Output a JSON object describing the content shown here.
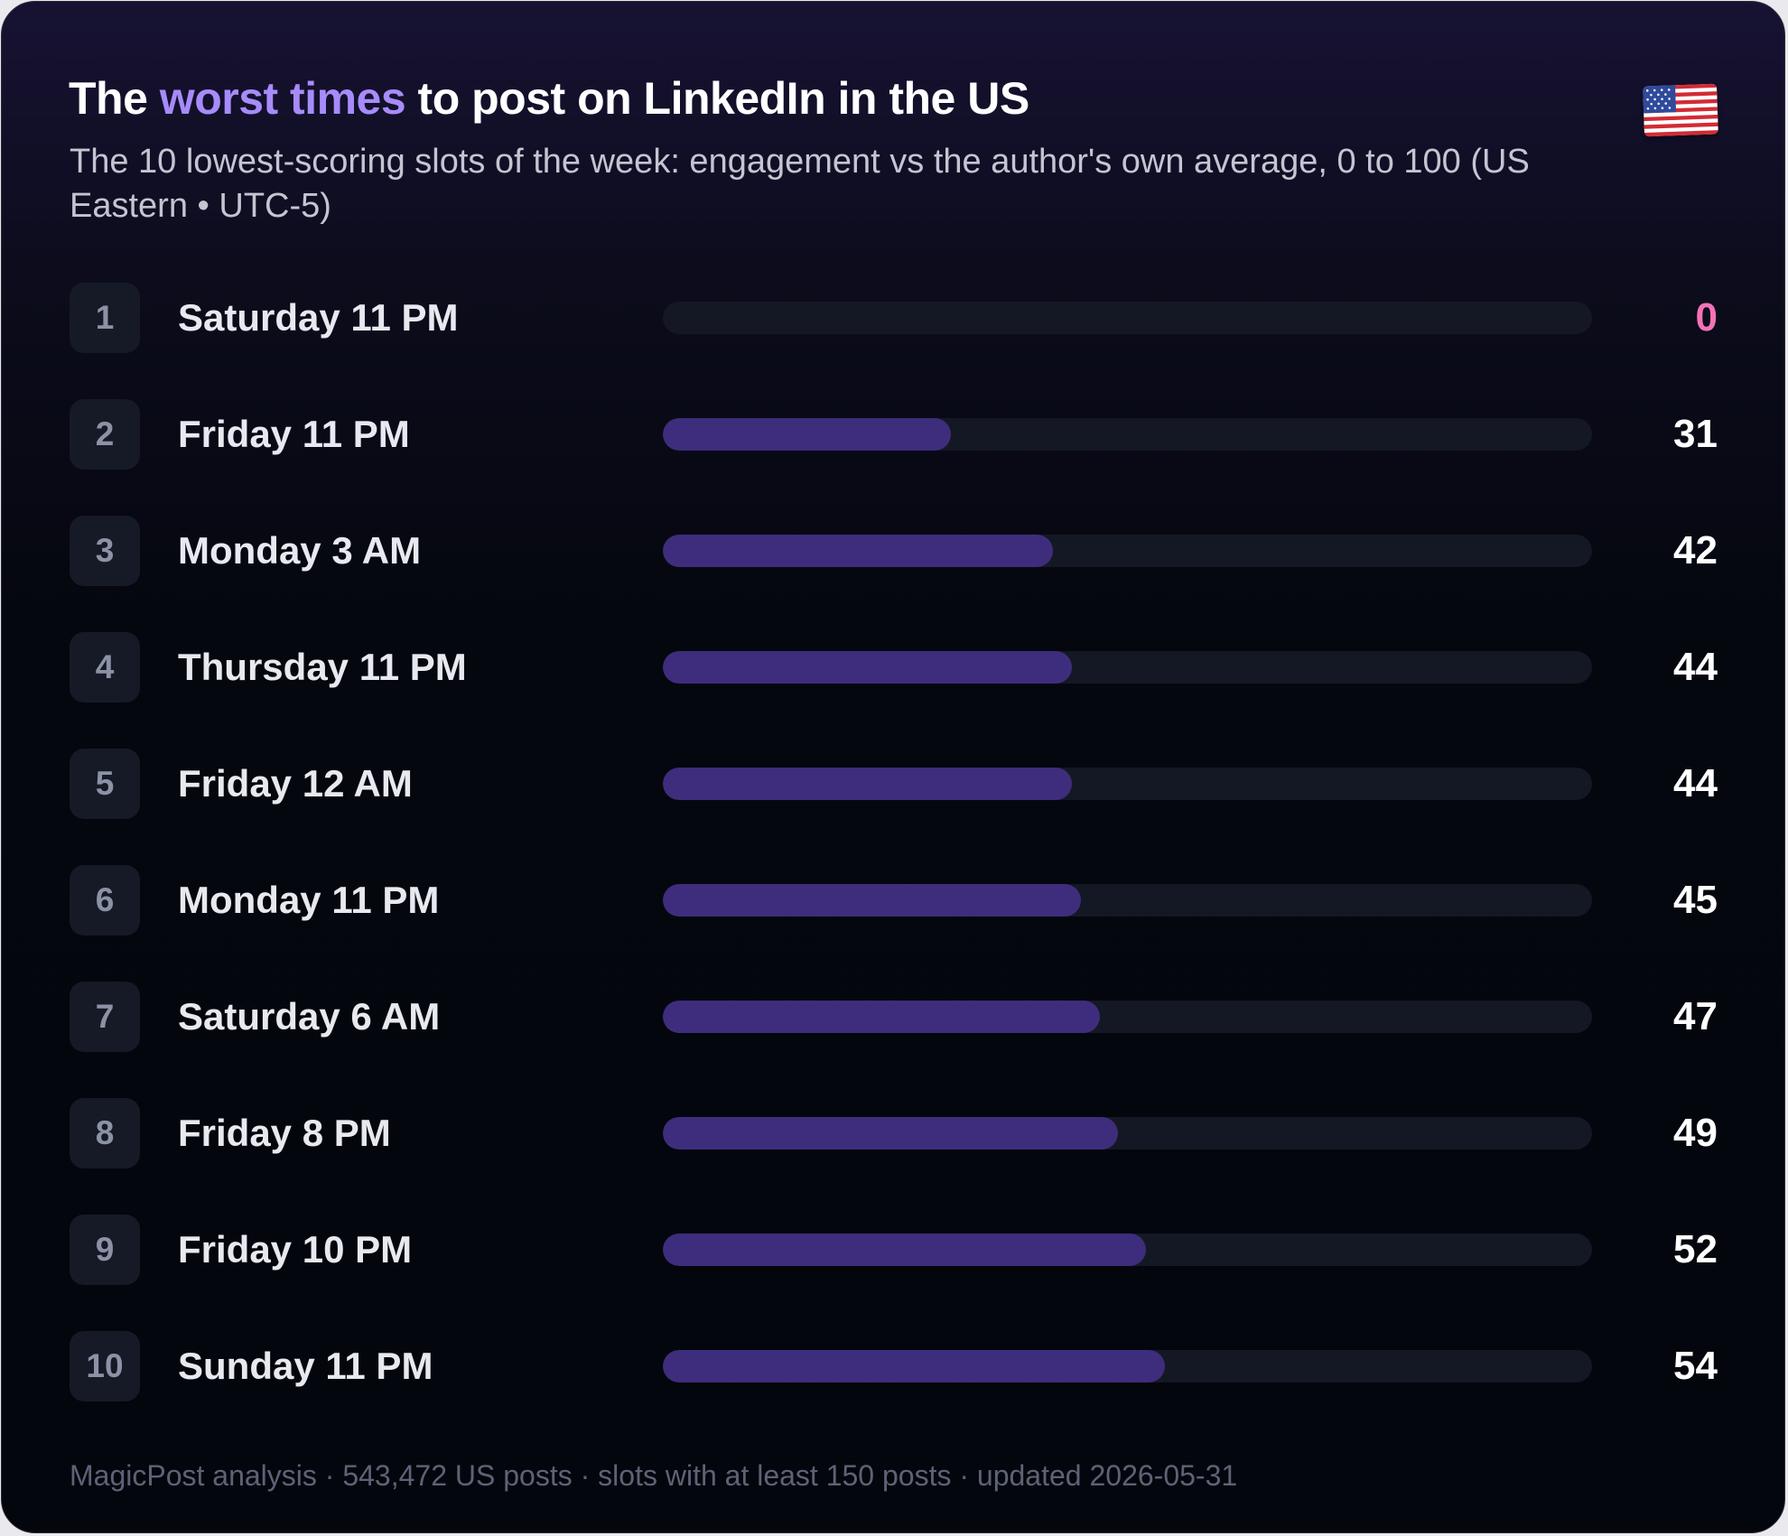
{
  "header": {
    "title_pre": "The ",
    "title_accent": "worst times",
    "title_post": " to post on LinkedIn in the US",
    "subtitle": "The 10 lowest-scoring slots of the week: engagement vs the author's own average, 0 to 100 (US Eastern • UTC-5)",
    "flag_icon": "us-flag-icon"
  },
  "colors": {
    "accent": "#a78bfa",
    "bar_fill": "#3e2d7c",
    "bar_track": "#141824",
    "zero_value": "#f472b6"
  },
  "chart_data": {
    "type": "bar",
    "orientation": "horizontal",
    "xlim": [
      0,
      100
    ],
    "categories": [
      "Saturday 11 PM",
      "Friday 11 PM",
      "Monday 3 AM",
      "Thursday 11 PM",
      "Friday 12 AM",
      "Monday 11 PM",
      "Saturday 6 AM",
      "Friday 8 PM",
      "Friday 10 PM",
      "Sunday 11 PM"
    ],
    "ranks": [
      "1",
      "2",
      "3",
      "4",
      "5",
      "6",
      "7",
      "8",
      "9",
      "10"
    ],
    "values": [
      0,
      31,
      42,
      44,
      44,
      45,
      47,
      49,
      52,
      54
    ]
  },
  "footer": {
    "text": "MagicPost analysis · 543,472 US posts · slots with at least 150 posts · updated 2026-05-31"
  }
}
